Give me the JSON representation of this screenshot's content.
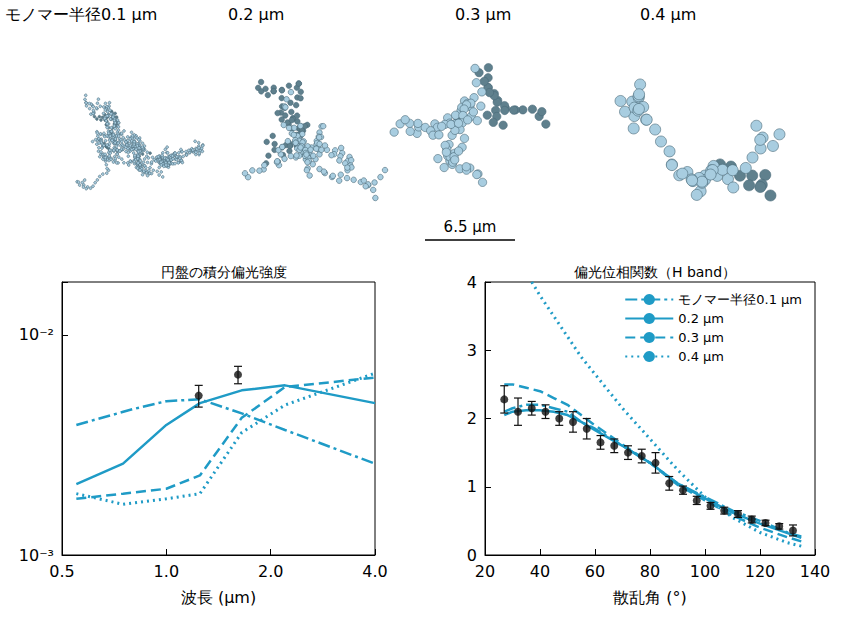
{
  "illustrations": {
    "aggregates": [
      {
        "label": "モノマー半径0.1 μm",
        "monomer_radius": 0.1
      },
      {
        "label": "0.2 μm",
        "monomer_radius": 0.2
      },
      {
        "label": "0.3 μm",
        "monomer_radius": 0.3
      },
      {
        "label": "0.4 μm",
        "monomer_radius": 0.4
      }
    ],
    "scale_bar": {
      "length": 6.5,
      "label": "6.5 μm"
    }
  },
  "chart_data": [
    {
      "type": "line",
      "title": "円盤の積分偏光強度",
      "x_label": "波長 (μm)",
      "log": true,
      "xlim": [
        0.5,
        4.0
      ],
      "xticks": [
        0.5,
        {
          "value": 1,
          "label": "1.0"
        },
        {
          "value": 2,
          "label": "2.0"
        },
        {
          "value": 4,
          "label": "4.0"
        }
      ],
      "ylim": [
        0.001,
        0.0174
      ],
      "yticks": [
        {
          "value": 0.001,
          "label": "10⁻³"
        },
        {
          "value": 0.01,
          "label": "10⁻²"
        }
      ],
      "grid": false,
      "series": [
        {
          "color": "#1f9bc6",
          "line_style": "dashdot",
          "x": [
            0.55,
            0.8,
            1.0,
            1.25,
            1.65,
            2.2,
            4.0
          ],
          "values": [
            0.0039,
            0.0046,
            0.005,
            0.0051,
            0.0044,
            0.0037,
            0.0026
          ]
        },
        {
          "color": "#1f9bc6",
          "line_style": "solid",
          "x": [
            0.55,
            0.75,
            1.0,
            1.25,
            1.65,
            2.2,
            4.0
          ],
          "values": [
            0.0021,
            0.0026,
            0.0039,
            0.0049,
            0.0056,
            0.0059,
            0.0049
          ]
        },
        {
          "color": "#1f9bc6",
          "line_style": "dashed",
          "x": [
            0.55,
            0.75,
            1.0,
            1.25,
            1.65,
            2.2,
            4.0
          ],
          "values": [
            0.0018,
            0.0019,
            0.002,
            0.0023,
            0.0042,
            0.0058,
            0.0064
          ]
        },
        {
          "color": "#1f9bc6",
          "line_style": "dotted",
          "x": [
            0.55,
            0.75,
            1.0,
            1.25,
            1.65,
            2.2,
            4.0
          ],
          "values": [
            0.0019,
            0.0017,
            0.0018,
            0.0019,
            0.0036,
            0.0048,
            0.0067
          ]
        },
        {
          "type": "scatter",
          "marker": "circle",
          "color": "#111111",
          "x": [
            1.24,
            1.61
          ],
          "values": [
            0.0053,
            0.0066
          ],
          "errors": [
            0.0006,
            0.0006
          ]
        }
      ]
    },
    {
      "type": "line",
      "title": "偏光位相関数（H band）",
      "x_label": "散乱角 (°)",
      "xlim": [
        20,
        140
      ],
      "xticks": [
        20,
        40,
        60,
        80,
        100,
        120,
        140
      ],
      "ylim": [
        0,
        4
      ],
      "yticks": [
        0,
        1,
        2,
        3,
        4
      ],
      "grid": false,
      "legend": "top-right",
      "series": [
        {
          "name": "モノマー半径0.1 μm",
          "color": "#1f9bc6",
          "line_style": "dashdot",
          "x": [
            27,
            30,
            35,
            40,
            45,
            50,
            55,
            60,
            70,
            80,
            90,
            100,
            110,
            120,
            130,
            135
          ],
          "values": [
            2.1,
            2.15,
            2.2,
            2.2,
            2.15,
            2.1,
            1.95,
            1.85,
            1.6,
            1.35,
            1.05,
            0.85,
            0.65,
            0.5,
            0.33,
            0.27
          ]
        },
        {
          "name": "0.2 μm",
          "color": "#1f9bc6",
          "line_style": "solid",
          "x": [
            27,
            30,
            35,
            40,
            45,
            50,
            55,
            60,
            70,
            80,
            90,
            100,
            110,
            120,
            130,
            135
          ],
          "values": [
            2.05,
            2.1,
            2.12,
            2.12,
            2.1,
            2.05,
            1.95,
            1.83,
            1.6,
            1.35,
            1.05,
            0.83,
            0.62,
            0.46,
            0.32,
            0.25
          ]
        },
        {
          "name": "0.3 μm",
          "color": "#1f9bc6",
          "line_style": "dashed",
          "x": [
            27,
            30,
            35,
            40,
            45,
            50,
            55,
            60,
            70,
            80,
            90,
            100,
            110,
            120,
            130,
            135
          ],
          "values": [
            2.5,
            2.5,
            2.45,
            2.4,
            2.3,
            2.2,
            2.05,
            1.9,
            1.62,
            1.35,
            1.03,
            0.8,
            0.58,
            0.4,
            0.26,
            0.2
          ]
        },
        {
          "name": "0.4 μm",
          "color": "#1f9bc6",
          "line_style": "dotted",
          "x": [
            37,
            40,
            45,
            50,
            55,
            60,
            70,
            80,
            90,
            100,
            110,
            120,
            130,
            135
          ],
          "values": [
            4.0,
            3.8,
            3.5,
            3.2,
            2.9,
            2.65,
            2.15,
            1.7,
            1.25,
            0.85,
            0.55,
            0.33,
            0.18,
            0.13
          ]
        },
        {
          "type": "scatter",
          "marker": "circle",
          "color": "#111111",
          "x": [
            27,
            32,
            37,
            42,
            47,
            52,
            57,
            62,
            67,
            72,
            77,
            82,
            87,
            92,
            97,
            102,
            107,
            112,
            117,
            122,
            127,
            132
          ],
          "values": [
            2.28,
            2.1,
            2.15,
            2.1,
            2.0,
            1.95,
            1.85,
            1.65,
            1.6,
            1.5,
            1.45,
            1.35,
            1.05,
            0.95,
            0.8,
            0.72,
            0.65,
            0.6,
            0.52,
            0.47,
            0.42,
            0.36
          ],
          "errors": [
            0.2,
            0.2,
            0.1,
            0.1,
            0.1,
            0.15,
            0.15,
            0.1,
            0.1,
            0.1,
            0.1,
            0.15,
            0.1,
            0.06,
            0.06,
            0.05,
            0.05,
            0.05,
            0.05,
            0.04,
            0.04,
            0.08
          ]
        }
      ]
    }
  ]
}
